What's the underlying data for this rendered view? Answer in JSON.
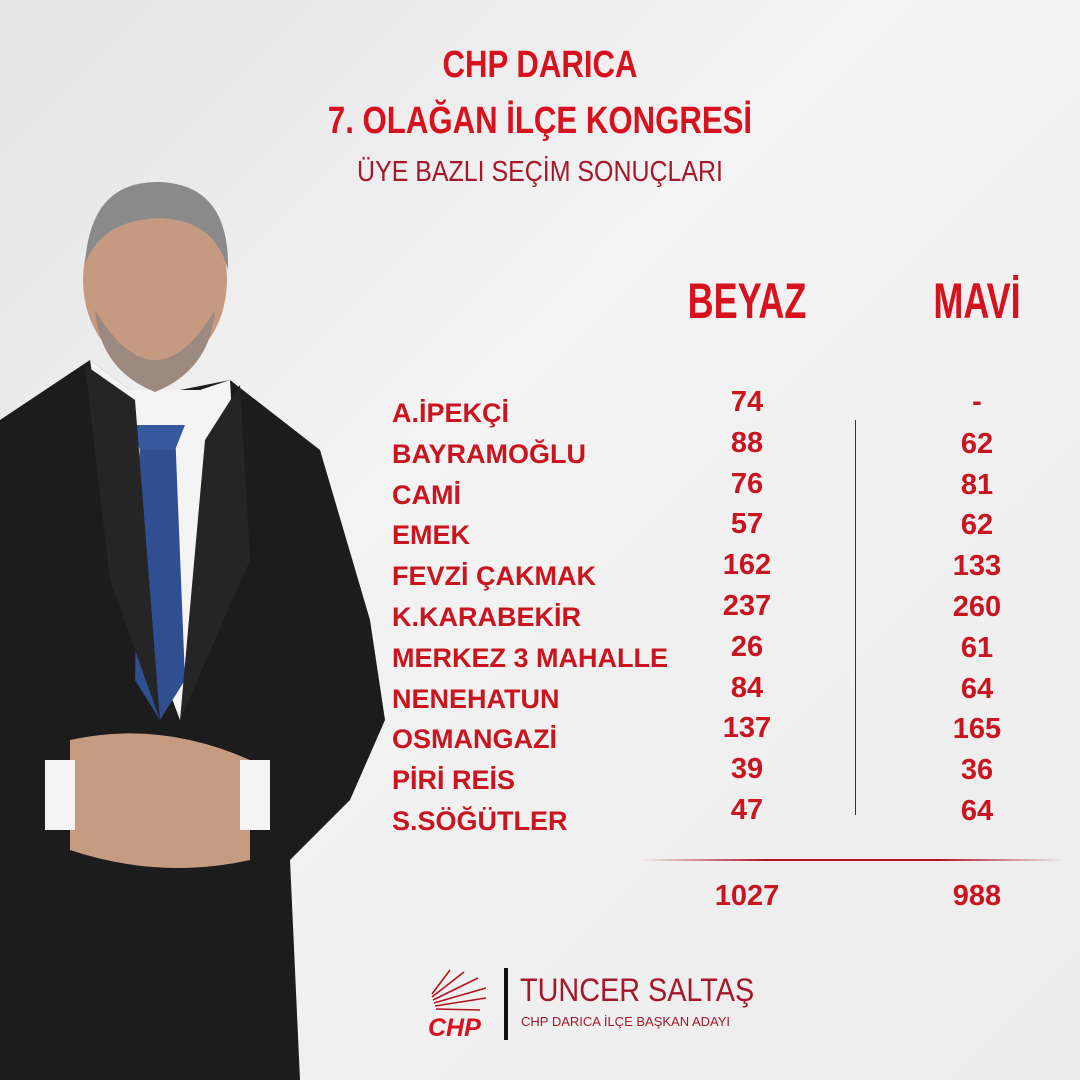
{
  "header": {
    "line1": "CHP DARICA",
    "line2": "7. OLAĞAN İLÇE KONGRESİ",
    "line3": "ÜYE BAZLI SEÇİM SONUÇLARI"
  },
  "columns": {
    "beyaz": "BEYAZ",
    "mavi": "MAVİ"
  },
  "rows": [
    {
      "name": "A.İPEKÇİ",
      "beyaz": "74",
      "mavi": "-"
    },
    {
      "name": "BAYRAMOĞLU",
      "beyaz": "88",
      "mavi": "62"
    },
    {
      "name": "CAMİ",
      "beyaz": "76",
      "mavi": "81"
    },
    {
      "name": "EMEK",
      "beyaz": "57",
      "mavi": "62"
    },
    {
      "name": "FEVZİ ÇAKMAK",
      "beyaz": "162",
      "mavi": "133"
    },
    {
      "name": "K.KARABEKİR",
      "beyaz": "237",
      "mavi": "260"
    },
    {
      "name": "MERKEZ 3 MAHALLE",
      "beyaz": "26",
      "mavi": "61"
    },
    {
      "name": "NENEHATUN",
      "beyaz": "84",
      "mavi": "64"
    },
    {
      "name": "OSMANGAZİ",
      "beyaz": "137",
      "mavi": "165"
    },
    {
      "name": "PİRİ REİS",
      "beyaz": "39",
      "mavi": "36"
    },
    {
      "name": "S.SÖĞÜTLER",
      "beyaz": "47",
      "mavi": "64"
    }
  ],
  "totals": {
    "beyaz": "1027",
    "mavi": "988"
  },
  "footer": {
    "logo_text": "CHP",
    "name": "TUNCER SALTAŞ",
    "role": "CHP DARICA İLÇE BAŞKAN ADAYI"
  },
  "colors": {
    "title_red": "#d6121f",
    "subtitle_red": "#a3182a",
    "row_red": "#c8151f"
  }
}
